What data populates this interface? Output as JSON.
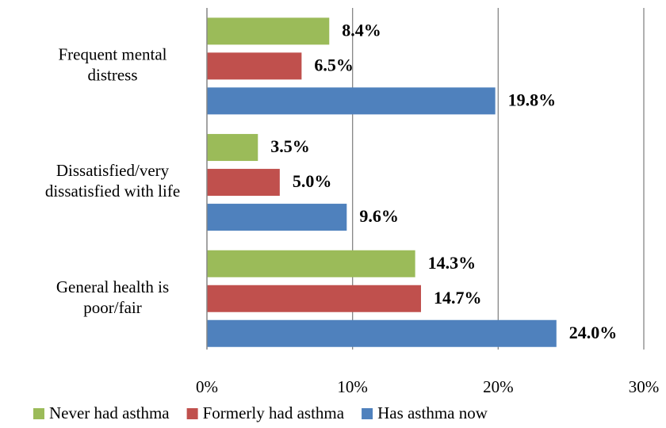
{
  "chart_data": {
    "type": "bar",
    "orientation": "horizontal",
    "categories": [
      "Frequent mental distress",
      "Dissatisfied/very dissatisfied with life",
      "General health is poor/fair"
    ],
    "series": [
      {
        "name": "Never had asthma",
        "color": "#9bbb59",
        "values": [
          8.4,
          3.5,
          14.3
        ],
        "value_labels": [
          "8.4%",
          "3.5%",
          "14.3%"
        ]
      },
      {
        "name": "Formerly had asthma",
        "color": "#c0504d",
        "values": [
          6.5,
          5.0,
          14.7
        ],
        "value_labels": [
          "6.5%",
          "5.0%",
          "14.7%"
        ]
      },
      {
        "name": "Has asthma now",
        "color": "#4f81bd",
        "values": [
          19.8,
          9.6,
          24.0
        ],
        "value_labels": [
          "19.8%",
          "9.6%",
          "24.0%"
        ]
      }
    ],
    "xlim": [
      0,
      30
    ],
    "xticks": [
      {
        "value": 0,
        "label": "0%"
      },
      {
        "value": 10,
        "label": "10%"
      },
      {
        "value": 20,
        "label": "20%"
      },
      {
        "value": 30,
        "label": "30%"
      }
    ],
    "grid": true,
    "legend": "bottom"
  }
}
